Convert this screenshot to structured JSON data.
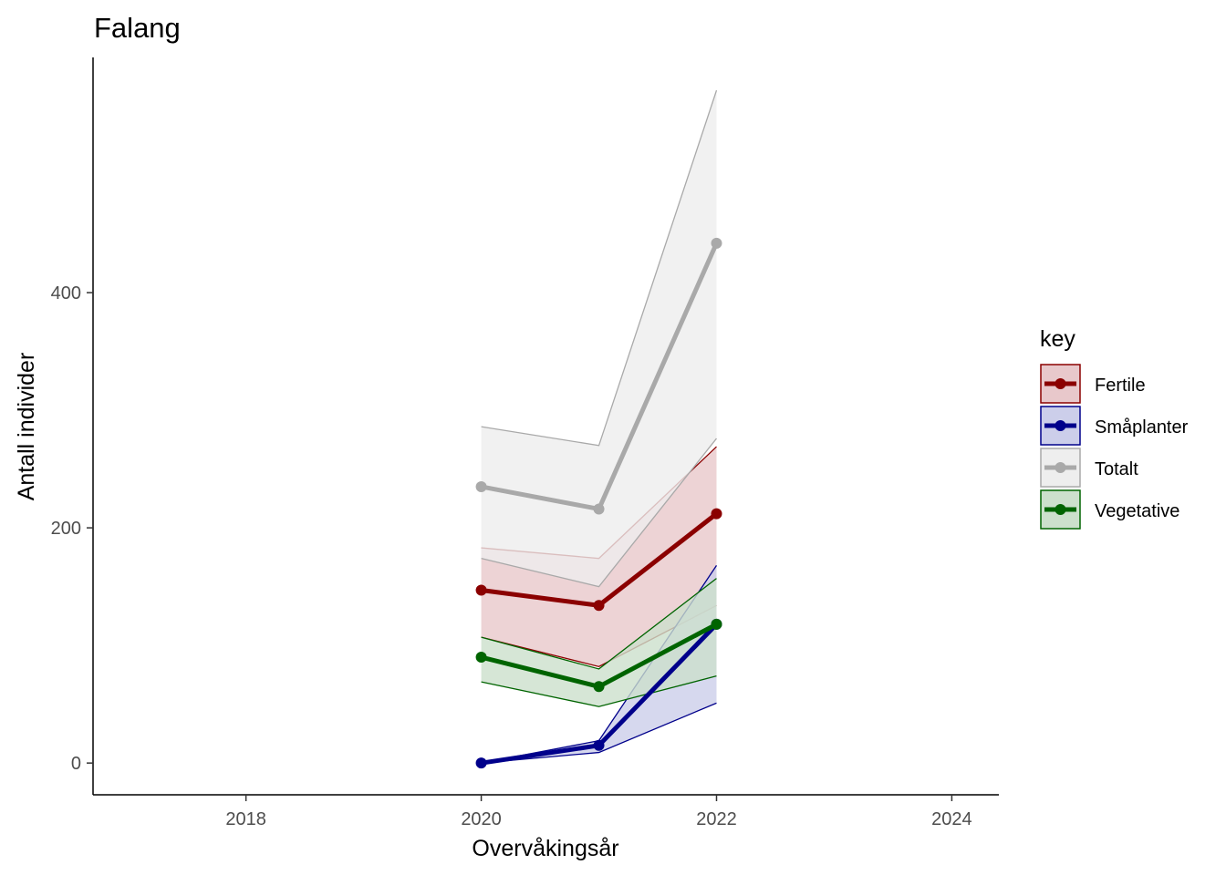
{
  "chart_data": {
    "type": "line",
    "title": "Falang",
    "xlabel": "Overvåkingsår",
    "ylabel": "Antall individer",
    "xlim": [
      2016.7,
      2024.4
    ],
    "ylim": [
      -27,
      600
    ],
    "x_ticks": [
      2018,
      2020,
      2022,
      2024
    ],
    "x_tick_labels": [
      "2018",
      "2020",
      "2022",
      "2024"
    ],
    "y_ticks": [
      0,
      200,
      400
    ],
    "y_tick_labels": [
      "0",
      "200",
      "400"
    ],
    "grid": false,
    "legend": {
      "title": "key",
      "position": "right"
    },
    "series": [
      {
        "name": "Fertile",
        "color": "#8b0000",
        "fill": "#e8c8cb",
        "x": [
          2020,
          2021,
          2022
        ],
        "values": [
          147,
          134,
          212
        ],
        "lower": [
          107,
          82,
          134
        ],
        "upper": [
          183,
          174,
          269
        ]
      },
      {
        "name": "Småplanter",
        "color": "#00008b",
        "fill": "#ccceea",
        "x": [
          2020,
          2021,
          2022
        ],
        "values": [
          0,
          15,
          118
        ],
        "lower": [
          0,
          9,
          51
        ],
        "upper": [
          0,
          19,
          168
        ]
      },
      {
        "name": "Totalt",
        "color": "#a9a9a9",
        "fill": "#eeeeee",
        "x": [
          2020,
          2021,
          2022
        ],
        "values": [
          235,
          216,
          442
        ],
        "lower": [
          174,
          150,
          276
        ],
        "upper": [
          286,
          270,
          572
        ]
      },
      {
        "name": "Vegetative",
        "color": "#006400",
        "fill": "#cce0cc",
        "x": [
          2020,
          2021,
          2022
        ],
        "values": [
          90,
          65,
          118
        ],
        "lower": [
          69,
          48,
          74
        ],
        "upper": [
          107,
          80,
          157
        ]
      }
    ]
  }
}
